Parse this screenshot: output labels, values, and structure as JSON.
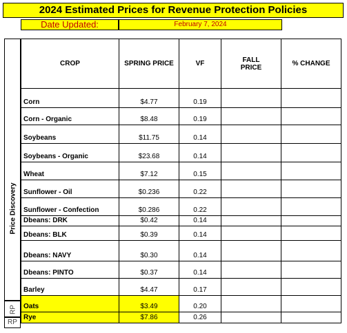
{
  "title": "2024 Estimated Prices for Revenue Protection Policies",
  "date_updated_label": "Date Updated:",
  "date_updated_value": "February 7, 2024",
  "side_label": "Price Discovery",
  "headers": {
    "crop": "CROP",
    "spring_price": "SPRING PRICE",
    "vf": "VF",
    "fall_price": "FALL PRICE",
    "pct_change": "% CHANGE"
  },
  "rows": [
    {
      "crop": "Corn",
      "spring_price": "$4.77",
      "vf": "0.19",
      "fall_price": "",
      "pct_change": ""
    },
    {
      "crop": "Corn - Organic",
      "spring_price": "$8.48",
      "vf": "0.19",
      "fall_price": "",
      "pct_change": ""
    },
    {
      "crop": "Soybeans",
      "spring_price": "$11.75",
      "vf": "0.14",
      "fall_price": "",
      "pct_change": ""
    },
    {
      "crop": "Soybeans - Organic",
      "spring_price": "$23.68",
      "vf": "0.14",
      "fall_price": "",
      "pct_change": ""
    },
    {
      "crop": "Wheat",
      "spring_price": "$7.12",
      "vf": "0.15",
      "fall_price": "",
      "pct_change": ""
    },
    {
      "crop": "Sunflower - Oil",
      "spring_price": "$0.236",
      "vf": "0.22",
      "fall_price": "",
      "pct_change": ""
    },
    {
      "crop": "Sunflower - Confection",
      "spring_price": "$0.286",
      "vf": "0.22",
      "fall_price": "",
      "pct_change": ""
    },
    {
      "crop": "Dbeans: DRK",
      "spring_price": "$0.42",
      "vf": "0.14",
      "fall_price": "",
      "pct_change": ""
    },
    {
      "crop": "Dbeans: BLK",
      "spring_price": "$0.39",
      "vf": "0.14",
      "fall_price": "",
      "pct_change": ""
    },
    {
      "crop": "Dbeans: NAVY",
      "spring_price": "$0.30",
      "vf": "0.14",
      "fall_price": "",
      "pct_change": ""
    },
    {
      "crop": "Dbeans: PINTO",
      "spring_price": "$0.37",
      "vf": "0.14",
      "fall_price": "",
      "pct_change": ""
    },
    {
      "crop": "Barley",
      "spring_price": "$4.47",
      "vf": "0.17",
      "fall_price": "",
      "pct_change": ""
    },
    {
      "crop": "Oats",
      "spring_price": "$3.49",
      "vf": "0.20",
      "fall_price": "",
      "pct_change": "",
      "highlight": true,
      "marker": "RP"
    },
    {
      "crop": "Rye",
      "spring_price": "$7.86",
      "vf": "0.26",
      "fall_price": "",
      "pct_change": "",
      "highlight": true,
      "marker": "RP"
    }
  ],
  "colors": {
    "highlight": "#ffff00",
    "date_text": "#c00000"
  }
}
